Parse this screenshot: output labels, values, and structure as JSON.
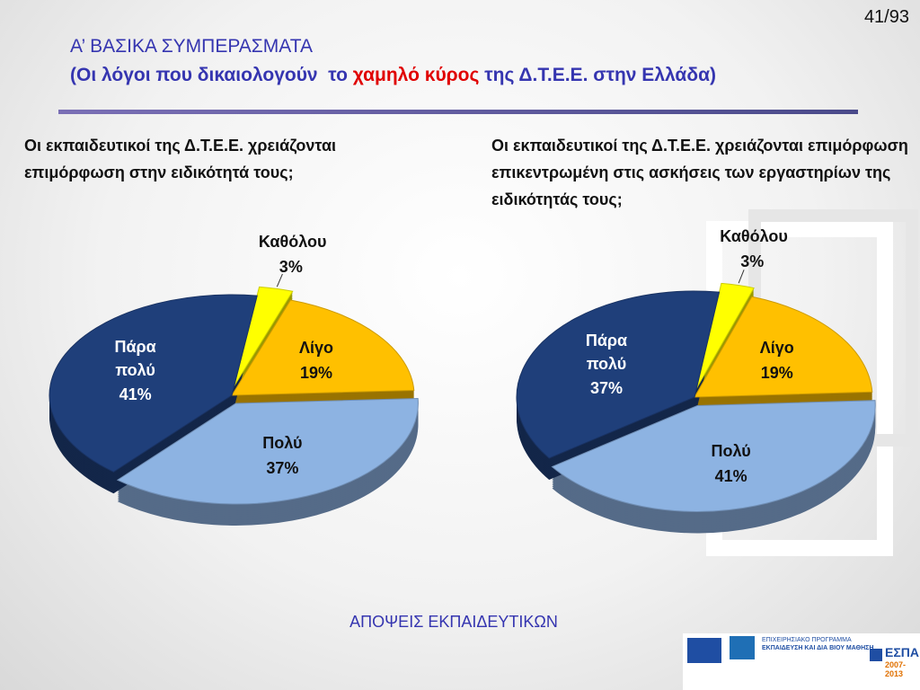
{
  "page_number": "41/93",
  "heading": {
    "title": "Α’ ΒΑΣΙΚΑ ΣΥΜΠΕΡΑΣΜΑΤΑ",
    "subtitle": [
      "(Οι λόγοι που δικαιολογούν  το ",
      "χαμηλό κύρος",
      " της Δ.Τ.Ε.Ε. στην Ελλάδα)"
    ]
  },
  "chart_data": [
    {
      "type": "pie",
      "title": "Οι εκπαιδευτικοί της Δ.Τ.Ε.Ε. χρειάζονται επιμόρφωση στην ειδικότητά τους;",
      "categories": [
        "Καθόλου",
        "Λίγο",
        "Πολύ",
        "Πάρα πολύ"
      ],
      "values": [
        3,
        19,
        37,
        41
      ],
      "value_labels": [
        "3%",
        "19%",
        "37%",
        "41%"
      ],
      "colors": [
        "#ffff00",
        "#ffc000",
        "#8db3e2",
        "#1f3f7a"
      ]
    },
    {
      "type": "pie",
      "title": "Οι εκπαιδευτικοί της Δ.Τ.Ε.Ε. χρειάζονται επιμόρφωση επικεντρωμένη στις ασκήσεις των εργαστηρίων της ειδικότητάς τους;",
      "categories": [
        "Καθόλου",
        "Λίγο",
        "Πολύ",
        "Πάρα πολύ"
      ],
      "values": [
        3,
        19,
        41,
        37
      ],
      "value_labels": [
        "3%",
        "19%",
        "41%",
        "37%"
      ],
      "colors": [
        "#ffff00",
        "#ffc000",
        "#8db3e2",
        "#1f3f7a"
      ]
    }
  ],
  "footer": "ΑΠΟΨΕΙΣ ΕΚΠΑΙΔΕΥΤΙΚΩΝ",
  "logos": {
    "program": "ΕΠΙΧΕΙΡΗΣΙΑΚΟ ΠΡΟΓΡΑΜΜΑ",
    "program_name": "ΕΚΠΑΙΔΕΥΣΗ ΚΑΙ ΔΙΑ ΒΙΟΥ ΜΑΘΗΣΗ",
    "espa": "ΕΣΠΑ",
    "period": "2007-2013"
  }
}
